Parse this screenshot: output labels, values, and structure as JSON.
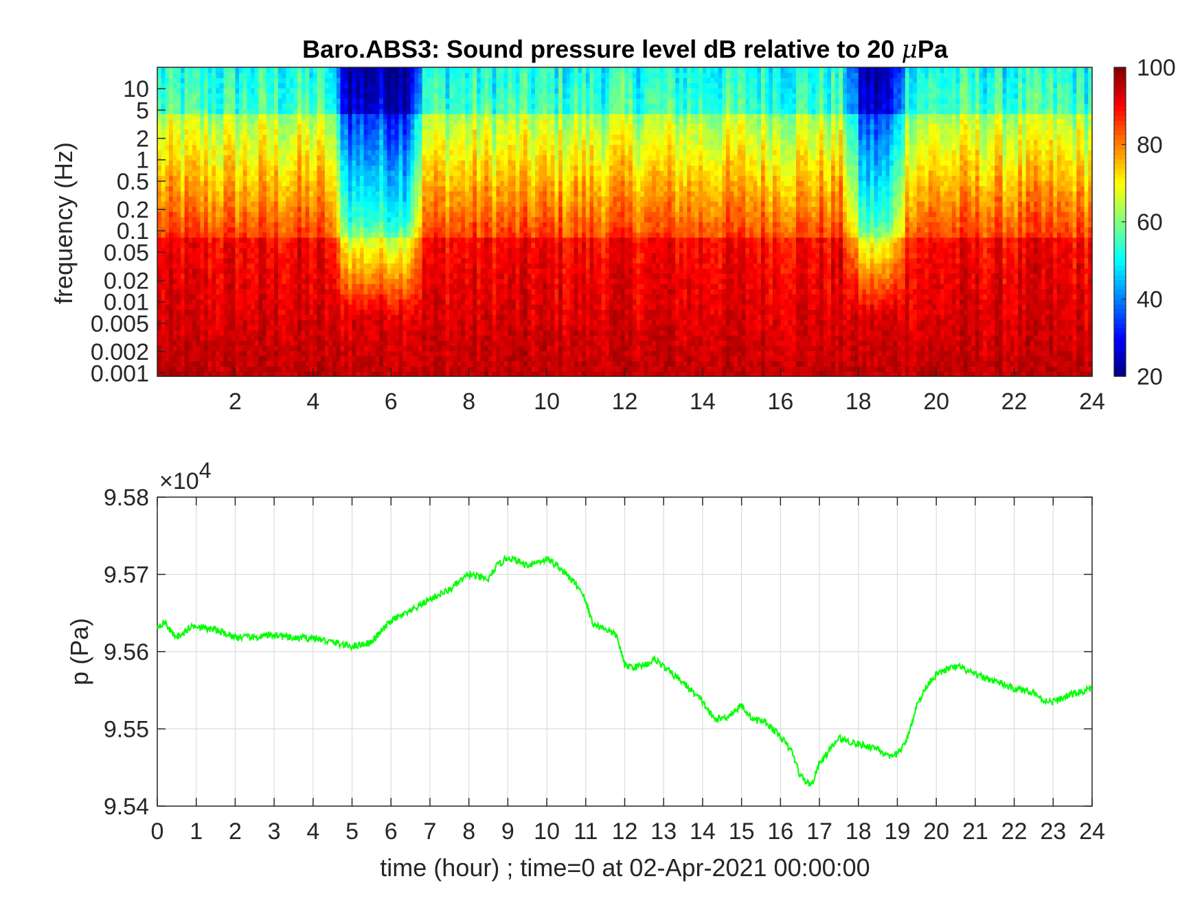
{
  "chart_data": [
    {
      "type": "heatmap",
      "title": "Baro.ABS3: Sound pressure level dB relative to 20 μPa",
      "title_prefix": "Baro.ABS3: Sound pressure level dB relative to 20 ",
      "title_unit_mu": "μ",
      "title_unit_rest": "Pa",
      "ylabel": "frequency (Hz)",
      "y_scale": "log",
      "yticks": [
        "10",
        "5",
        "2",
        "1",
        "0.5",
        "0.2",
        "0.1",
        "0.05",
        "0.02",
        "0.01",
        "0.005",
        "0.002",
        "0.001"
      ],
      "ytick_values": [
        10,
        5,
        2,
        1,
        0.5,
        0.2,
        0.1,
        0.05,
        0.02,
        0.01,
        0.005,
        0.002,
        0.001
      ],
      "xticks": [
        "2",
        "4",
        "6",
        "8",
        "10",
        "12",
        "14",
        "16",
        "18",
        "20",
        "22",
        "24"
      ],
      "xtick_values": [
        2,
        4,
        6,
        8,
        10,
        12,
        14,
        16,
        18,
        20,
        22,
        24
      ],
      "xlim": [
        0,
        24
      ],
      "ylim": [
        0.0009,
        20
      ],
      "colormap": "jet",
      "colorbar": {
        "ticks": [
          "100",
          "80",
          "60",
          "40",
          "20"
        ],
        "tick_values": [
          100,
          80,
          60,
          40,
          20
        ],
        "range": [
          20,
          100
        ]
      },
      "quiet_periods_hours": [
        [
          4.4,
          6.9
        ],
        [
          17.6,
          19.3
        ]
      ],
      "description_levels_db": {
        "low_freq": 95,
        "mid_freq": 85,
        "high_freq": 55
      }
    },
    {
      "type": "line",
      "ylabel": "p (Pa)",
      "xlabel": "time (hour) ; time=0 at 02-Apr-2021 00:00:00",
      "y_multiplier_label": "×10",
      "y_multiplier_exp": "4",
      "xticks": [
        "0",
        "1",
        "2",
        "3",
        "4",
        "5",
        "6",
        "7",
        "8",
        "9",
        "10",
        "11",
        "12",
        "13",
        "14",
        "15",
        "16",
        "17",
        "18",
        "19",
        "20",
        "21",
        "22",
        "23",
        "24"
      ],
      "yticks": [
        "9.58",
        "9.57",
        "9.56",
        "9.55",
        "9.54"
      ],
      "ytick_values": [
        9.58,
        9.57,
        9.56,
        9.55,
        9.54
      ],
      "xlim": [
        0,
        24
      ],
      "ylim": [
        9.54,
        9.58
      ],
      "grid": true,
      "series": [
        {
          "color": "#00ff00",
          "x": [
            0,
            0.2,
            0.4,
            0.6,
            0.8,
            1.0,
            1.2,
            1.5,
            2.0,
            2.5,
            3.0,
            3.5,
            4.0,
            4.5,
            5.0,
            5.5,
            6.0,
            6.5,
            7.0,
            7.5,
            8.0,
            8.5,
            8.7,
            9.0,
            9.5,
            10.0,
            10.3,
            10.6,
            10.9,
            11.2,
            11.5,
            11.8,
            12.0,
            12.3,
            12.6,
            12.8,
            13.0,
            13.5,
            14.0,
            14.3,
            14.6,
            15.0,
            15.3,
            15.6,
            16.0,
            16.3,
            16.5,
            16.7,
            16.8,
            17.0,
            17.3,
            17.5,
            18.0,
            18.5,
            18.8,
            19.0,
            19.2,
            19.5,
            19.8,
            20.0,
            20.3,
            20.6,
            21.0,
            21.5,
            22.0,
            22.5,
            22.7,
            23.0,
            23.5,
            24.0
          ],
          "y": [
            9.5633,
            9.5638,
            9.5622,
            9.562,
            9.563,
            9.5635,
            9.563,
            9.5628,
            9.5619,
            9.5618,
            9.5622,
            9.5617,
            9.5618,
            9.5612,
            9.5607,
            9.5612,
            9.564,
            9.5652,
            9.5668,
            9.568,
            9.57,
            9.5693,
            9.571,
            9.5722,
            9.5712,
            9.572,
            9.571,
            9.5695,
            9.5678,
            9.5635,
            9.563,
            9.562,
            9.5582,
            9.558,
            9.5585,
            9.559,
            9.558,
            9.556,
            9.5535,
            9.5512,
            9.5515,
            9.553,
            9.5512,
            9.551,
            9.549,
            9.547,
            9.544,
            9.543,
            9.5428,
            9.5455,
            9.5475,
            9.5488,
            9.548,
            9.5475,
            9.5462,
            9.5468,
            9.548,
            9.553,
            9.556,
            9.557,
            9.5578,
            9.558,
            9.557,
            9.5562,
            9.5552,
            9.5548,
            9.5538,
            9.5535,
            9.5545,
            9.5552
          ]
        }
      ]
    }
  ]
}
